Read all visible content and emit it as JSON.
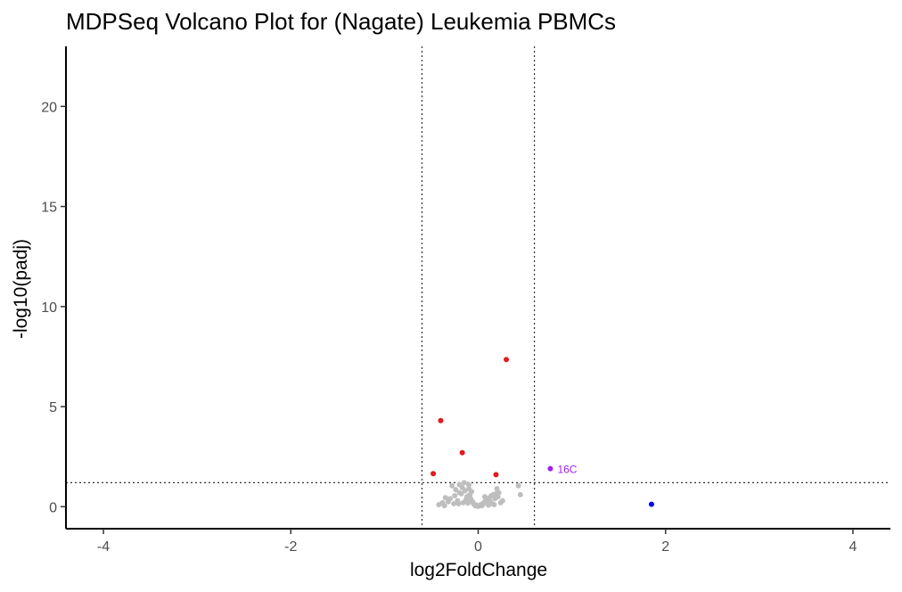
{
  "chart_data": {
    "type": "scatter",
    "title": "MDPSeq Volcano Plot for (Nagate) Leukemia PBMCs",
    "xlabel": "log2FoldChange",
    "ylabel": "-log10(padj)",
    "xlim": [
      -4.4,
      4.4
    ],
    "ylim": [
      -1.1,
      23
    ],
    "xticks": [
      -4,
      -2,
      0,
      2,
      4
    ],
    "yticks": [
      0,
      5,
      10,
      15,
      20
    ],
    "xtick_labels": [
      "-4",
      "-2",
      "0",
      "2",
      "4"
    ],
    "ytick_labels": [
      "0",
      "5",
      "10",
      "15",
      "20"
    ],
    "grid": false,
    "legend": "none",
    "thresholds": {
      "log2fc_cutoffs": [
        -0.6,
        0.6
      ],
      "neglog10_padj_cutoff": 1.2
    },
    "colors": {
      "not_significant": "#bebebe",
      "padj_significant": "#e41a1c",
      "fold_change": "#0000ff",
      "both": "#a020f0",
      "threshold_line": "#333333"
    },
    "series": [
      {
        "color": "#bebebe",
        "points": [
          [
            -0.2,
            1.1
          ],
          [
            -0.15,
            1.2
          ],
          [
            -0.28,
            1.05
          ],
          [
            -0.1,
            1.1
          ],
          [
            -0.35,
            0.45
          ],
          [
            -0.38,
            0.2
          ],
          [
            -0.42,
            0.1
          ],
          [
            -0.36,
            0.05
          ],
          [
            -0.3,
            0.4
          ],
          [
            -0.25,
            0.55
          ],
          [
            -0.22,
            0.3
          ],
          [
            -0.18,
            0.65
          ],
          [
            -0.14,
            0.8
          ],
          [
            -0.12,
            0.5
          ],
          [
            -0.1,
            0.9
          ],
          [
            -0.08,
            0.4
          ],
          [
            -0.06,
            0.25
          ],
          [
            -0.05,
            0.15
          ],
          [
            -0.04,
            0.1
          ],
          [
            -0.03,
            0.05
          ],
          [
            -0.02,
            0.08
          ],
          [
            -0.01,
            0.03
          ],
          [
            0.0,
            0.02
          ],
          [
            0.01,
            0.04
          ],
          [
            0.02,
            0.06
          ],
          [
            0.03,
            0.1
          ],
          [
            0.04,
            0.05
          ],
          [
            0.05,
            0.12
          ],
          [
            0.06,
            0.2
          ],
          [
            0.08,
            0.3
          ],
          [
            0.1,
            0.35
          ],
          [
            0.12,
            0.45
          ],
          [
            0.14,
            0.55
          ],
          [
            0.16,
            0.6
          ],
          [
            0.18,
            0.4
          ],
          [
            0.2,
            0.9
          ],
          [
            0.22,
            0.7
          ],
          [
            0.24,
            0.2
          ],
          [
            0.26,
            0.3
          ],
          [
            -0.16,
            0.2
          ],
          [
            -0.26,
            0.15
          ],
          [
            -0.09,
            0.6
          ],
          [
            -0.07,
            0.75
          ],
          [
            0.07,
            0.5
          ],
          [
            0.09,
            0.25
          ],
          [
            0.15,
            0.15
          ],
          [
            0.11,
            0.08
          ],
          [
            0.43,
            1.05
          ],
          [
            0.45,
            0.6
          ],
          [
            -0.2,
            0.7
          ],
          [
            -0.17,
            0.95
          ],
          [
            -0.13,
            0.35
          ],
          [
            0.19,
            0.65
          ],
          [
            0.21,
            0.5
          ],
          [
            -0.24,
            0.85
          ],
          [
            -0.21,
            0.15
          ],
          [
            -0.11,
            0.18
          ],
          [
            0.13,
            0.25
          ],
          [
            0.17,
            0.1
          ],
          [
            -0.32,
            0.25
          ]
        ]
      },
      {
        "color": "#e41a1c",
        "points": [
          [
            0.3,
            7.35
          ],
          [
            -0.4,
            4.3
          ],
          [
            -0.17,
            2.7
          ],
          [
            -0.48,
            1.65
          ],
          [
            0.19,
            1.6
          ]
        ]
      },
      {
        "color": "#0000ff",
        "points": [
          [
            1.85,
            0.12
          ]
        ]
      },
      {
        "color": "#a020f0",
        "points": [
          [
            0.77,
            1.9
          ]
        ]
      }
    ],
    "annotations": [
      {
        "text": "16C",
        "x": 0.77,
        "y": 1.9,
        "color": "#a020f0"
      }
    ]
  }
}
